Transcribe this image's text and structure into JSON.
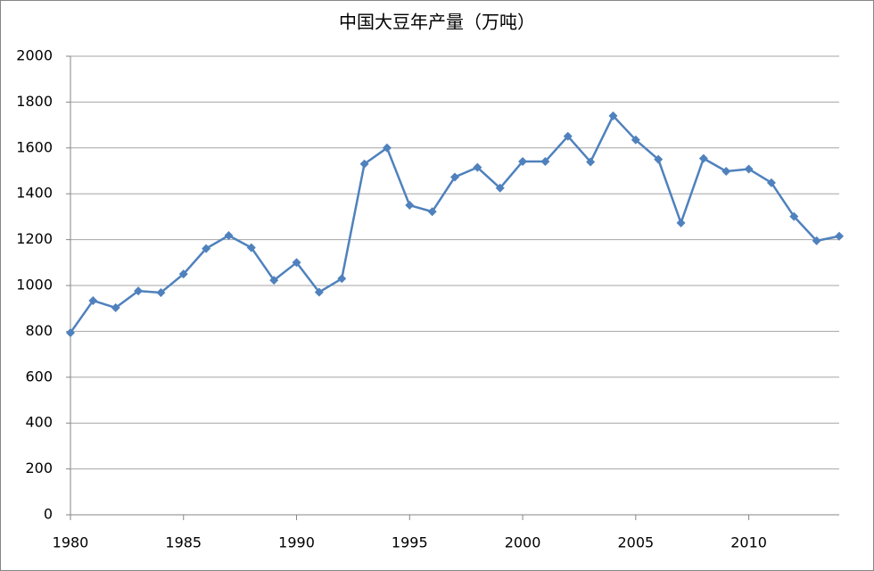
{
  "chart_data": {
    "type": "line",
    "title": "中国大豆年产量（万吨）",
    "x": [
      1980,
      1981,
      1982,
      1983,
      1984,
      1985,
      1986,
      1987,
      1988,
      1989,
      1990,
      1991,
      1992,
      1993,
      1994,
      1995,
      1996,
      1997,
      1998,
      1999,
      2000,
      2001,
      2002,
      2003,
      2004,
      2005,
      2006,
      2007,
      2008,
      2009,
      2010,
      2011,
      2012,
      2013,
      2014
    ],
    "series": [
      {
        "color": "#4f81bd",
        "values": [
          794,
          934,
          903,
          976,
          969,
          1050,
          1161,
          1218,
          1165,
          1023,
          1100,
          971,
          1030,
          1530,
          1600,
          1350,
          1322,
          1473,
          1515,
          1425,
          1541,
          1541,
          1651,
          1539,
          1740,
          1635,
          1550,
          1273,
          1554,
          1498,
          1508,
          1448,
          1301,
          1195,
          1215
        ]
      }
    ],
    "xlim": [
      1980,
      2014
    ],
    "xticks": [
      1980,
      1985,
      1990,
      1995,
      2000,
      2005,
      2010
    ],
    "ylim": [
      0,
      2000
    ],
    "yticks": [
      0,
      200,
      400,
      600,
      800,
      1000,
      1200,
      1400,
      1600,
      1800,
      2000
    ],
    "grid": true
  }
}
